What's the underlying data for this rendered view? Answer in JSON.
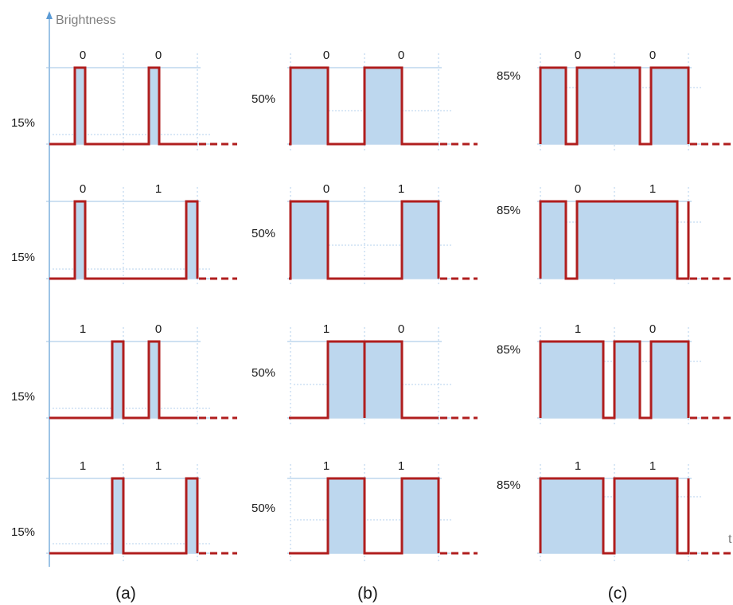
{
  "axis": {
    "y_label": "Brightness",
    "x_label": "t"
  },
  "panel_labels": [
    "(a)",
    "(b)",
    "(c)"
  ],
  "columns": [
    {
      "duty_label": "15%",
      "rows": [
        {
          "bits": [
            "0",
            "0"
          ]
        },
        {
          "bits": [
            "0",
            "1"
          ]
        },
        {
          "bits": [
            "1",
            "0"
          ]
        },
        {
          "bits": [
            "1",
            "1"
          ]
        }
      ]
    },
    {
      "duty_label": "50%",
      "rows": [
        {
          "bits": [
            "0",
            "0"
          ]
        },
        {
          "bits": [
            "0",
            "1"
          ]
        },
        {
          "bits": [
            "1",
            "0"
          ]
        },
        {
          "bits": [
            "1",
            "1"
          ]
        }
      ]
    },
    {
      "duty_label": "85%",
      "rows": [
        {
          "bits": [
            "0",
            "0"
          ]
        },
        {
          "bits": [
            "0",
            "1"
          ]
        },
        {
          "bits": [
            "1",
            "0"
          ]
        },
        {
          "bits": [
            "1",
            "1"
          ]
        }
      ]
    }
  ],
  "colors": {
    "signal": "#b01e1e",
    "fill": "#bdd7ee",
    "grid": "#9dc3e6",
    "axis": "#5b9bd5"
  }
}
